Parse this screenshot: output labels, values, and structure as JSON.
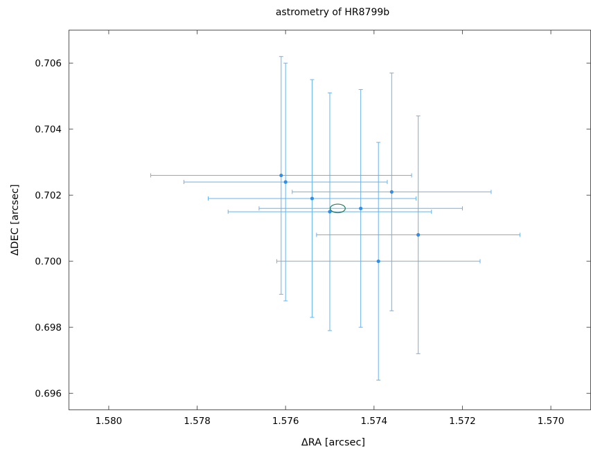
{
  "chart_data": {
    "type": "scatter",
    "title": "astrometry of HR8799b",
    "xlabel": "ΔRA [arcsec]",
    "ylabel": "ΔDEC [arcsec]",
    "xlim": [
      1.5809,
      1.5691
    ],
    "ylim": [
      0.6955,
      0.707
    ],
    "x_reversed": true,
    "grid": false,
    "xticks": [
      1.58,
      1.578,
      1.576,
      1.574,
      1.572,
      1.57
    ],
    "yticks": [
      0.696,
      0.698,
      0.7,
      0.702,
      0.704,
      0.706
    ],
    "xtick_labels": [
      "1.580",
      "1.578",
      "1.576",
      "1.574",
      "1.572",
      "1.570"
    ],
    "ytick_labels": [
      "0.696",
      "0.698",
      "0.700",
      "0.702",
      "0.704",
      "0.706"
    ],
    "points": [
      {
        "x": 1.5761,
        "y": 0.7026,
        "xerr": 0.00295,
        "yerr": 0.0036
      },
      {
        "x": 1.576,
        "y": 0.7024,
        "xerr": 0.0023,
        "yerr": 0.0036
      },
      {
        "x": 1.5754,
        "y": 0.7019,
        "xerr": 0.00235,
        "yerr": 0.0036
      },
      {
        "x": 1.5736,
        "y": 0.7021,
        "xerr": 0.00225,
        "yerr": 0.0036
      },
      {
        "x": 1.5743,
        "y": 0.7016,
        "xerr": 0.0023,
        "yerr": 0.0036
      },
      {
        "x": 1.575,
        "y": 0.7015,
        "xerr": 0.0023,
        "yerr": 0.0036
      },
      {
        "x": 1.573,
        "y": 0.7008,
        "xerr": 0.0023,
        "yerr": 0.0036
      },
      {
        "x": 1.5739,
        "y": 0.7,
        "xerr": 0.0023,
        "yerr": 0.0036
      }
    ],
    "ellipse": {
      "cx": 1.57482,
      "cy": 0.7016,
      "rx": 0.00017,
      "ry": 0.00013
    },
    "colors": {
      "points": "#2f8fe8",
      "errorbars": "#66b3ee",
      "ellipse": "#1f7a55",
      "axes": "#555555"
    }
  }
}
